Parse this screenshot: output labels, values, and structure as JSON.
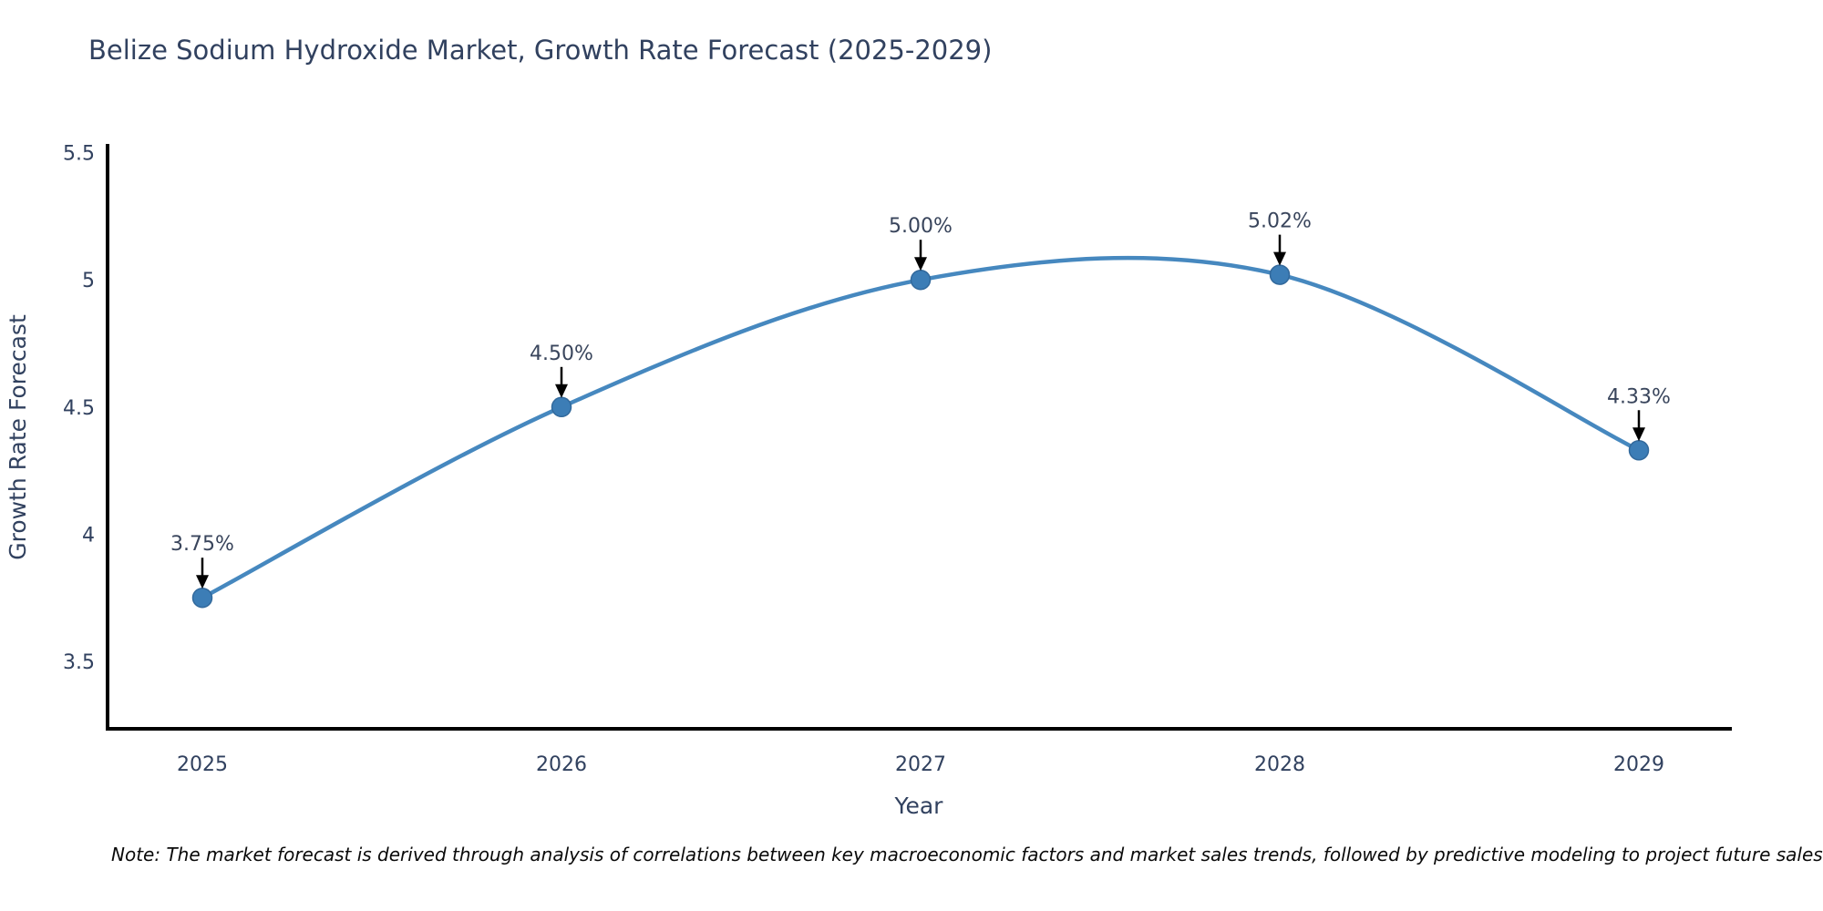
{
  "title": "Belize Sodium Hydroxide Market, Growth Rate Forecast (2025-2029)",
  "note": "Note: The market forecast is derived through analysis of correlations between key macroeconomic factors and market sales trends, followed by predictive modeling to project future sales",
  "chart_data": {
    "type": "line",
    "title": "Belize Sodium Hydroxide Market, Growth Rate Forecast (2025-2029)",
    "xlabel": "Year",
    "ylabel": "Growth Rate Forecast",
    "x": [
      2025,
      2026,
      2027,
      2028,
      2029
    ],
    "y": [
      3.75,
      4.5,
      5.0,
      5.02,
      4.33
    ],
    "point_labels": [
      "3.75%",
      "4.50%",
      "5.00%",
      "5.02%",
      "4.33%"
    ],
    "x_ticks": [
      "2025",
      "2026",
      "2027",
      "2028",
      "2029"
    ],
    "y_ticks": [
      3.5,
      4,
      4.5,
      5,
      5.5
    ],
    "y_tick_labels": [
      "3.5",
      "4",
      "4.5",
      "5",
      "5.5"
    ],
    "ylim": [
      3.22,
      5.55
    ],
    "line_shape": "spline",
    "grid": false,
    "legend_position": "none",
    "line_color": "#4688bf",
    "marker_color": "#3c7db6",
    "marker_edge_color": "#32699c",
    "axis_color": "#000000",
    "arrow_color": "#000000",
    "text_color": "#31415f"
  }
}
